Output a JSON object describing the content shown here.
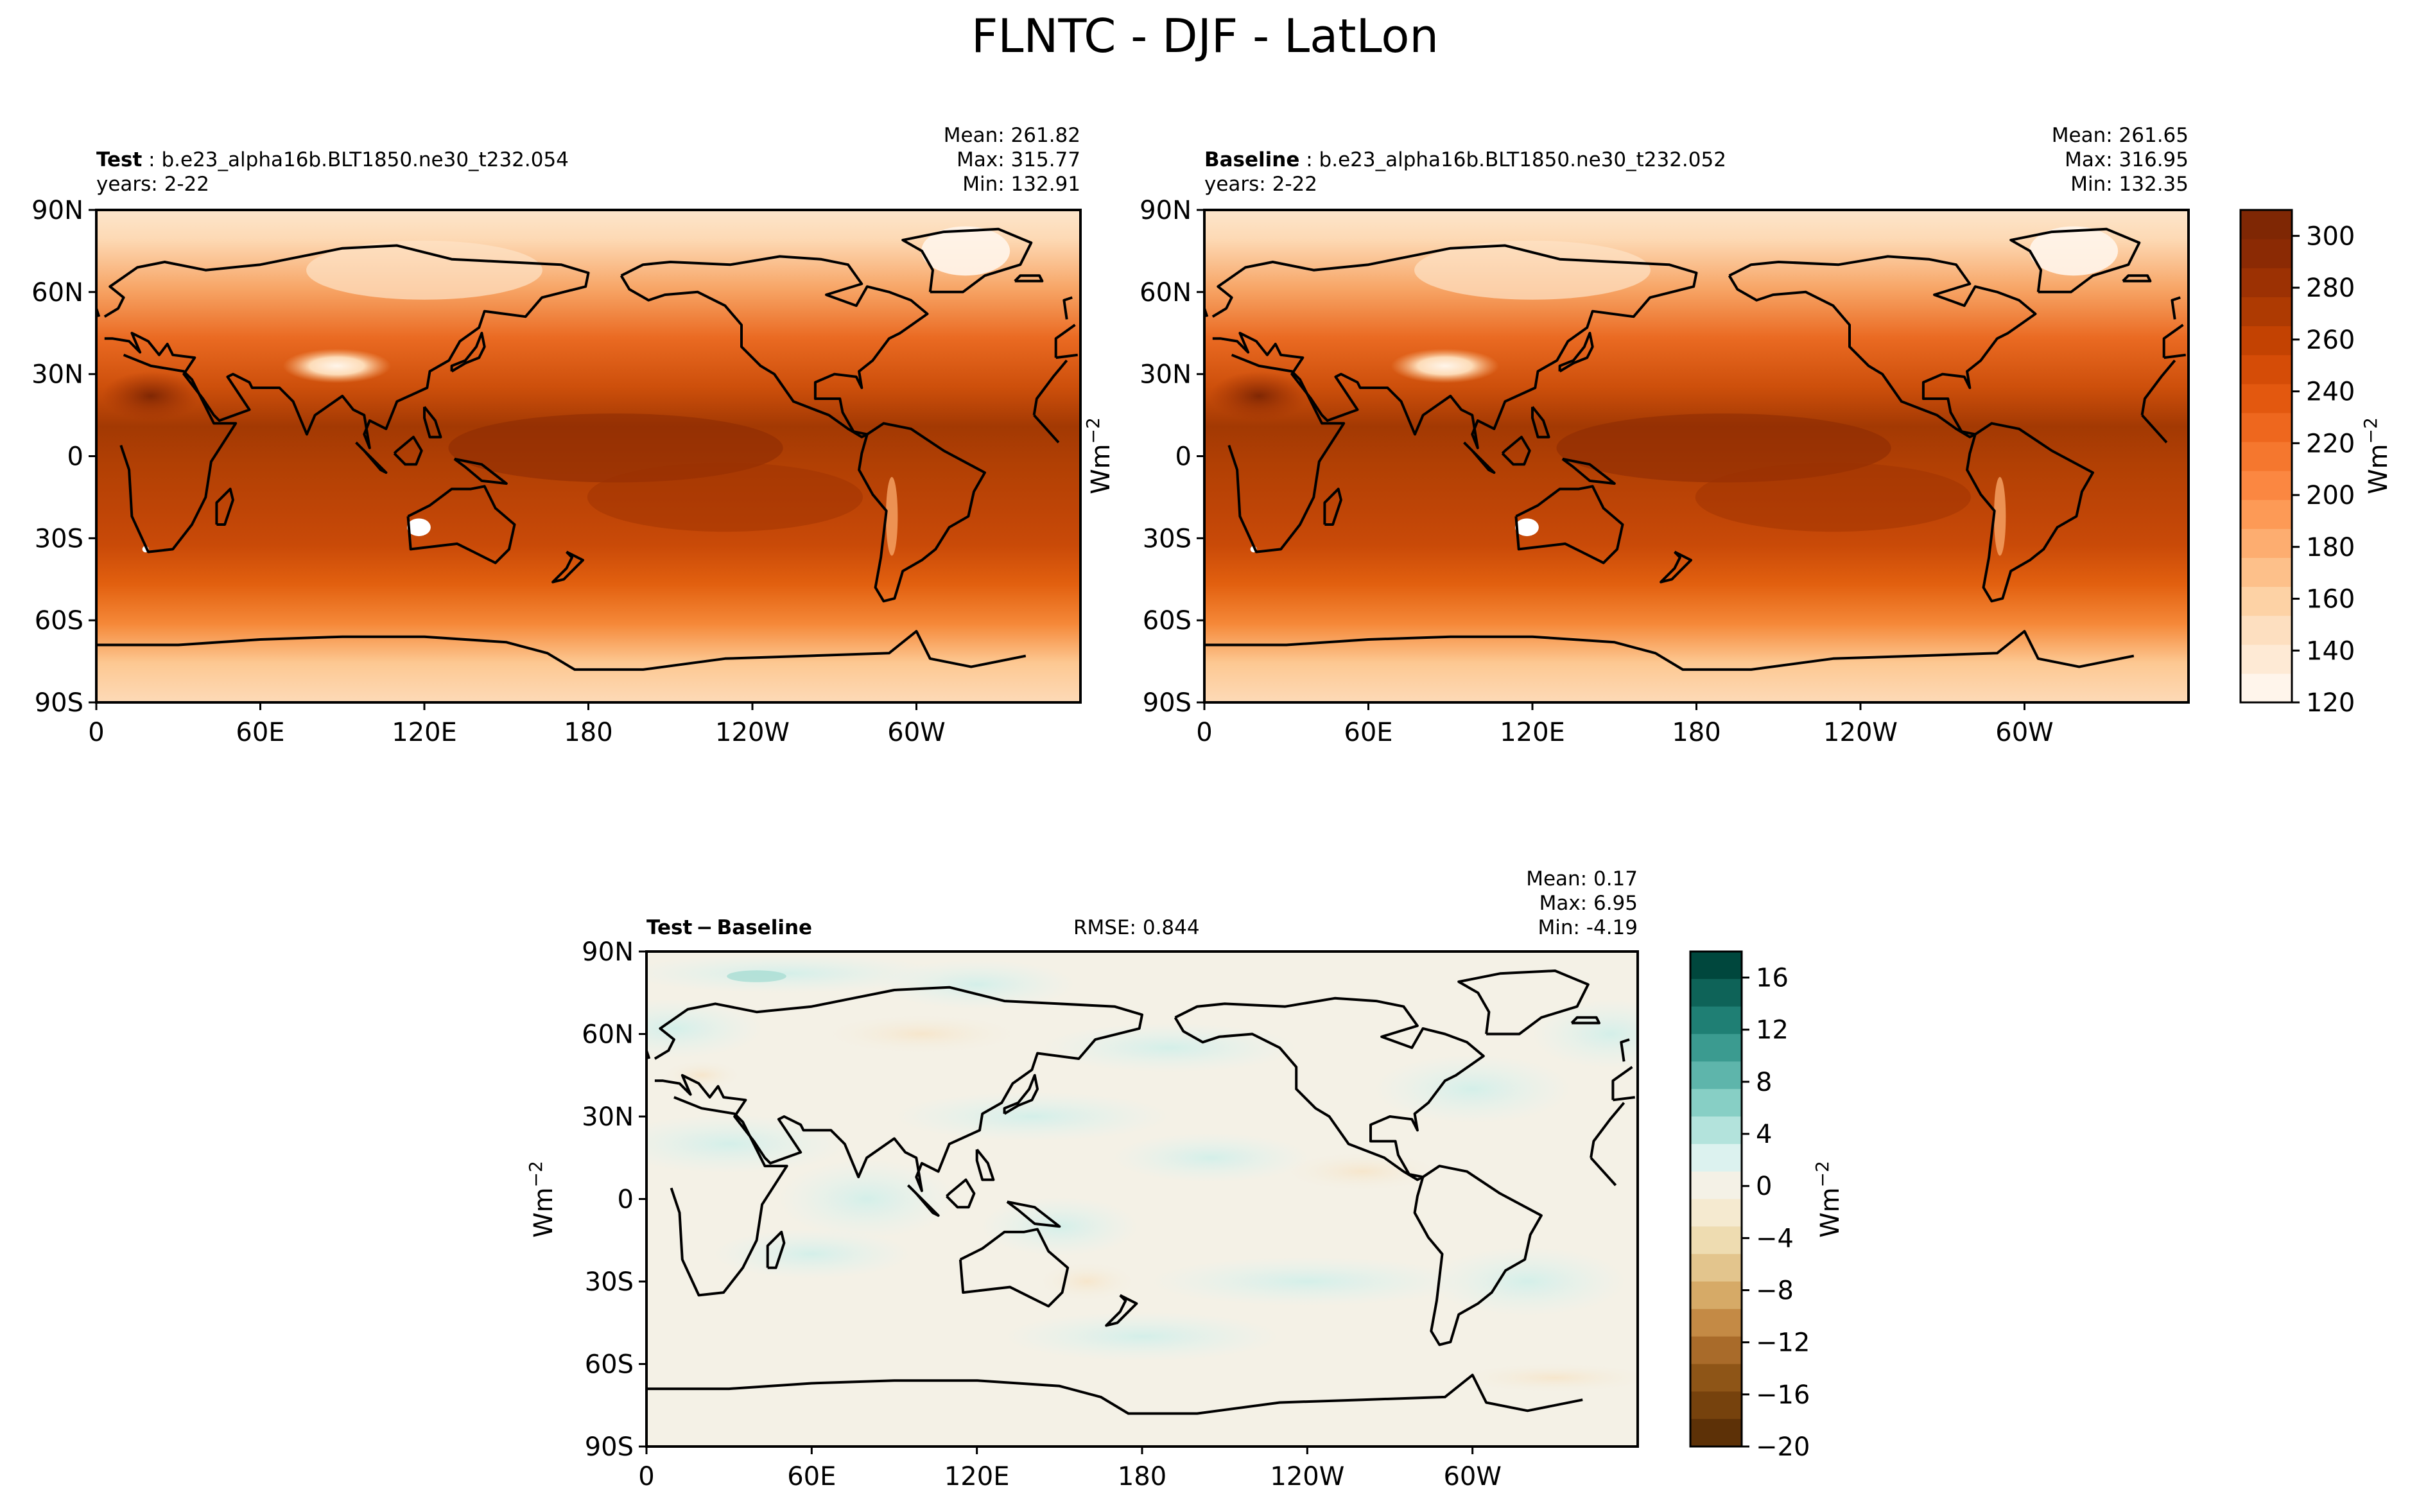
{
  "figure": {
    "title": "FLNTC - DJF - LatLon"
  },
  "panels": {
    "test": {
      "label_bold": "Test",
      "case": "b.e23_alpha16b.BLT1850.ne30_t232.054",
      "years": "years: 2-22",
      "mean": "Mean: 261.82",
      "max": "Max: 315.77",
      "min": "Min: 132.91"
    },
    "baseline": {
      "label_bold": "Baseline",
      "case": "b.e23_alpha16b.BLT1850.ne30_t232.052",
      "years": "years: 2-22",
      "mean": "Mean: 261.65",
      "max": "Max: 316.95",
      "min": "Min: 132.35"
    },
    "diff": {
      "label_bold": "Test − Baseline",
      "rmse": "RMSE: 0.844",
      "mean": "Mean:  0.17",
      "max": "Max:  6.95",
      "min": "Min: -4.19"
    }
  },
  "axis_ticks": {
    "lat": [
      "90N",
      "60N",
      "30N",
      "0",
      "30S",
      "60S",
      "90S"
    ],
    "lon": [
      "0",
      "60E",
      "120E",
      "180",
      "120W",
      "60W"
    ]
  },
  "units": {
    "base": "Wm",
    "exponent": "−2"
  },
  "colorbars": {
    "main": {
      "ticks": [
        "120",
        "140",
        "160",
        "180",
        "200",
        "220",
        "240",
        "260",
        "280",
        "300"
      ],
      "colors": [
        "#fff5eb",
        "#feead5",
        "#fddfc0",
        "#fdd2a5",
        "#fdc08a",
        "#fdad70",
        "#fd9a56",
        "#fb8741",
        "#f5772e",
        "#ee671e",
        "#e3580f",
        "#d54c07",
        "#c34202",
        "#ae3a02",
        "#9c3103",
        "#8b2a04",
        "#7f2704"
      ]
    },
    "diff": {
      "ticks": [
        "16",
        "12",
        "8",
        "4",
        "0",
        "−4",
        "−8",
        "−12",
        "−16",
        "−20"
      ],
      "colors": [
        "#00473d",
        "#0e6358",
        "#1f7f74",
        "#3b9b90",
        "#5eb5ab",
        "#87cfc5",
        "#b3e3dc",
        "#dcf2ef",
        "#f4f1e6",
        "#f5ead0",
        "#eedcb1",
        "#e3c58d",
        "#d6aa67",
        "#c48a45",
        "#a96b2a",
        "#8e5517",
        "#76420d",
        "#5d3107"
      ]
    }
  }
}
